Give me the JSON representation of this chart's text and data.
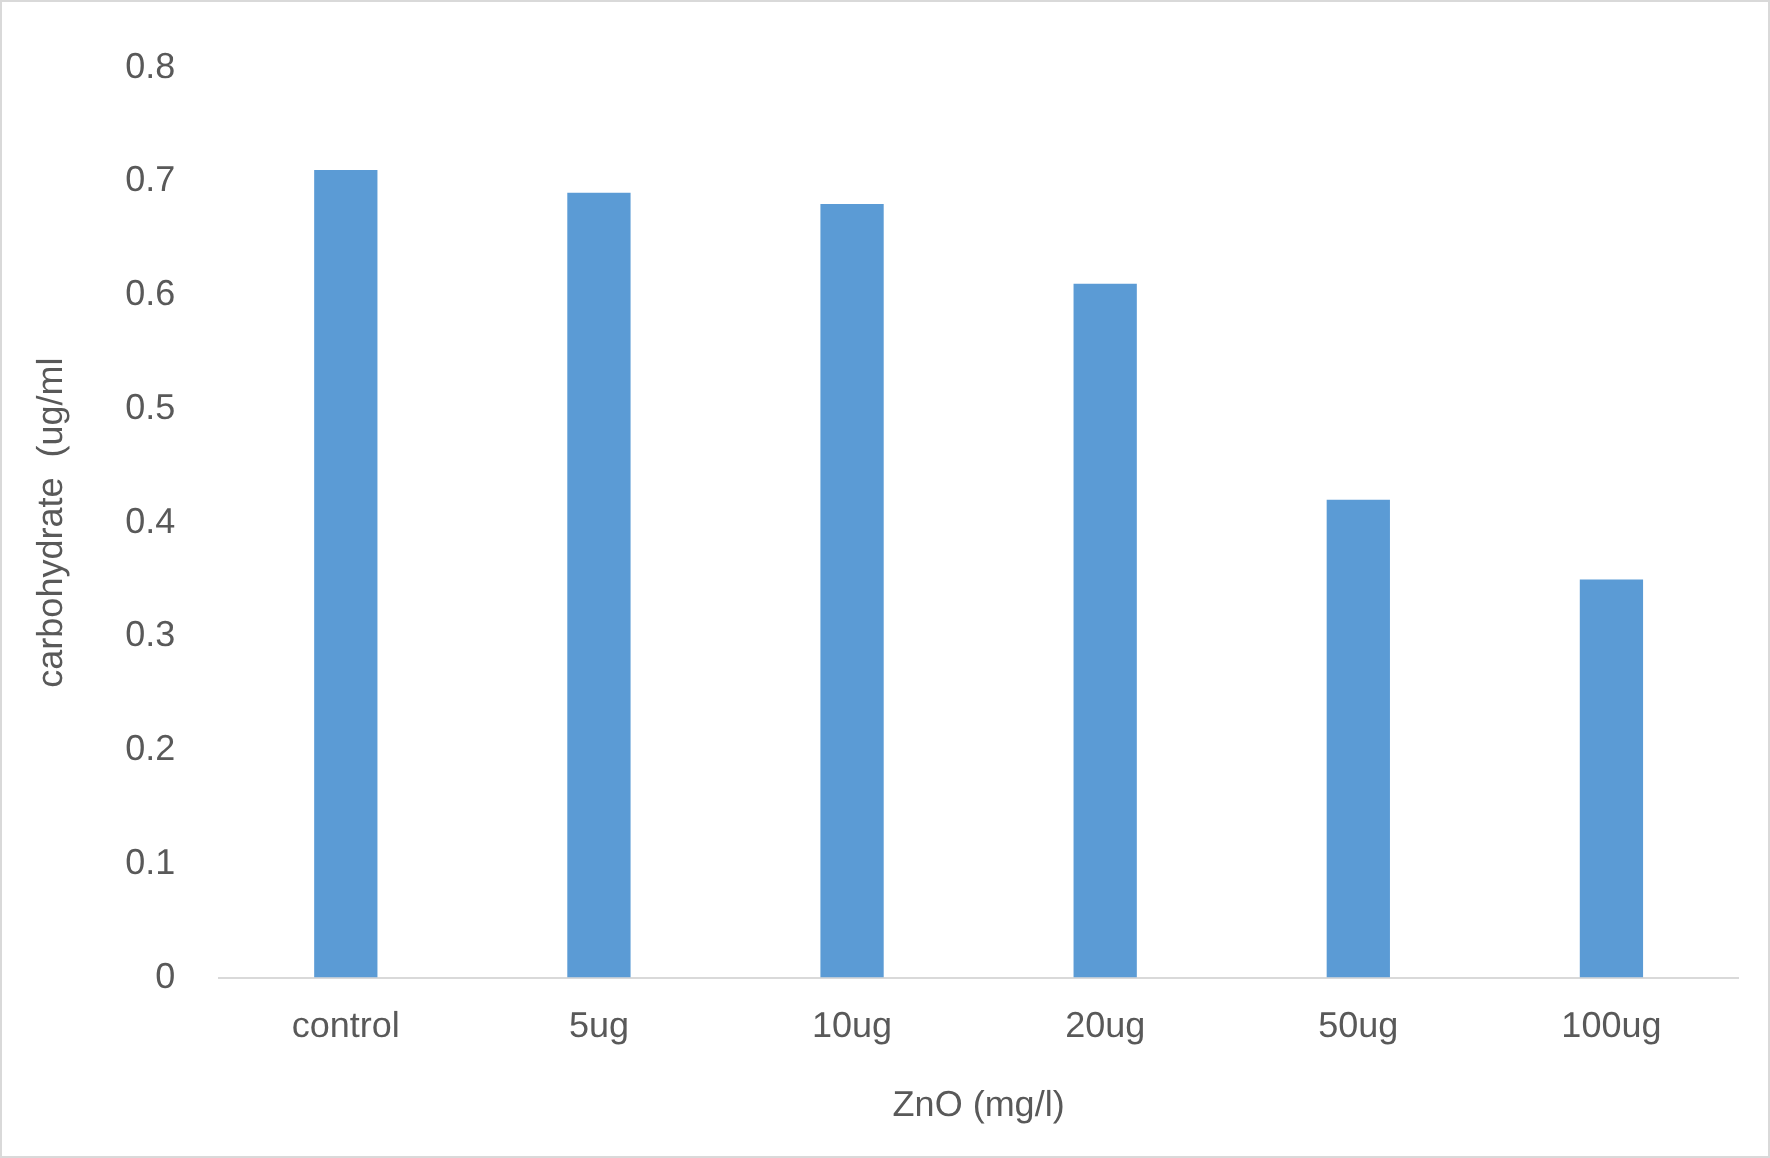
{
  "chart_data": {
    "type": "bar",
    "xlabel": "ZnO (mg/l)",
    "ylabel": "carbohydrate  (ug/ml",
    "categories": [
      "control",
      "5ug",
      "10ug",
      "20ug",
      "50ug",
      "100ug"
    ],
    "values": [
      0.71,
      0.69,
      0.68,
      0.61,
      0.42,
      0.35
    ],
    "color": "#5b9bd5",
    "ylim": [
      0,
      0.8
    ],
    "yticks": [
      0,
      0.1,
      0.2,
      0.3,
      0.4,
      0.5,
      0.6,
      0.7,
      0.8
    ],
    "grid": false,
    "legend": false
  }
}
